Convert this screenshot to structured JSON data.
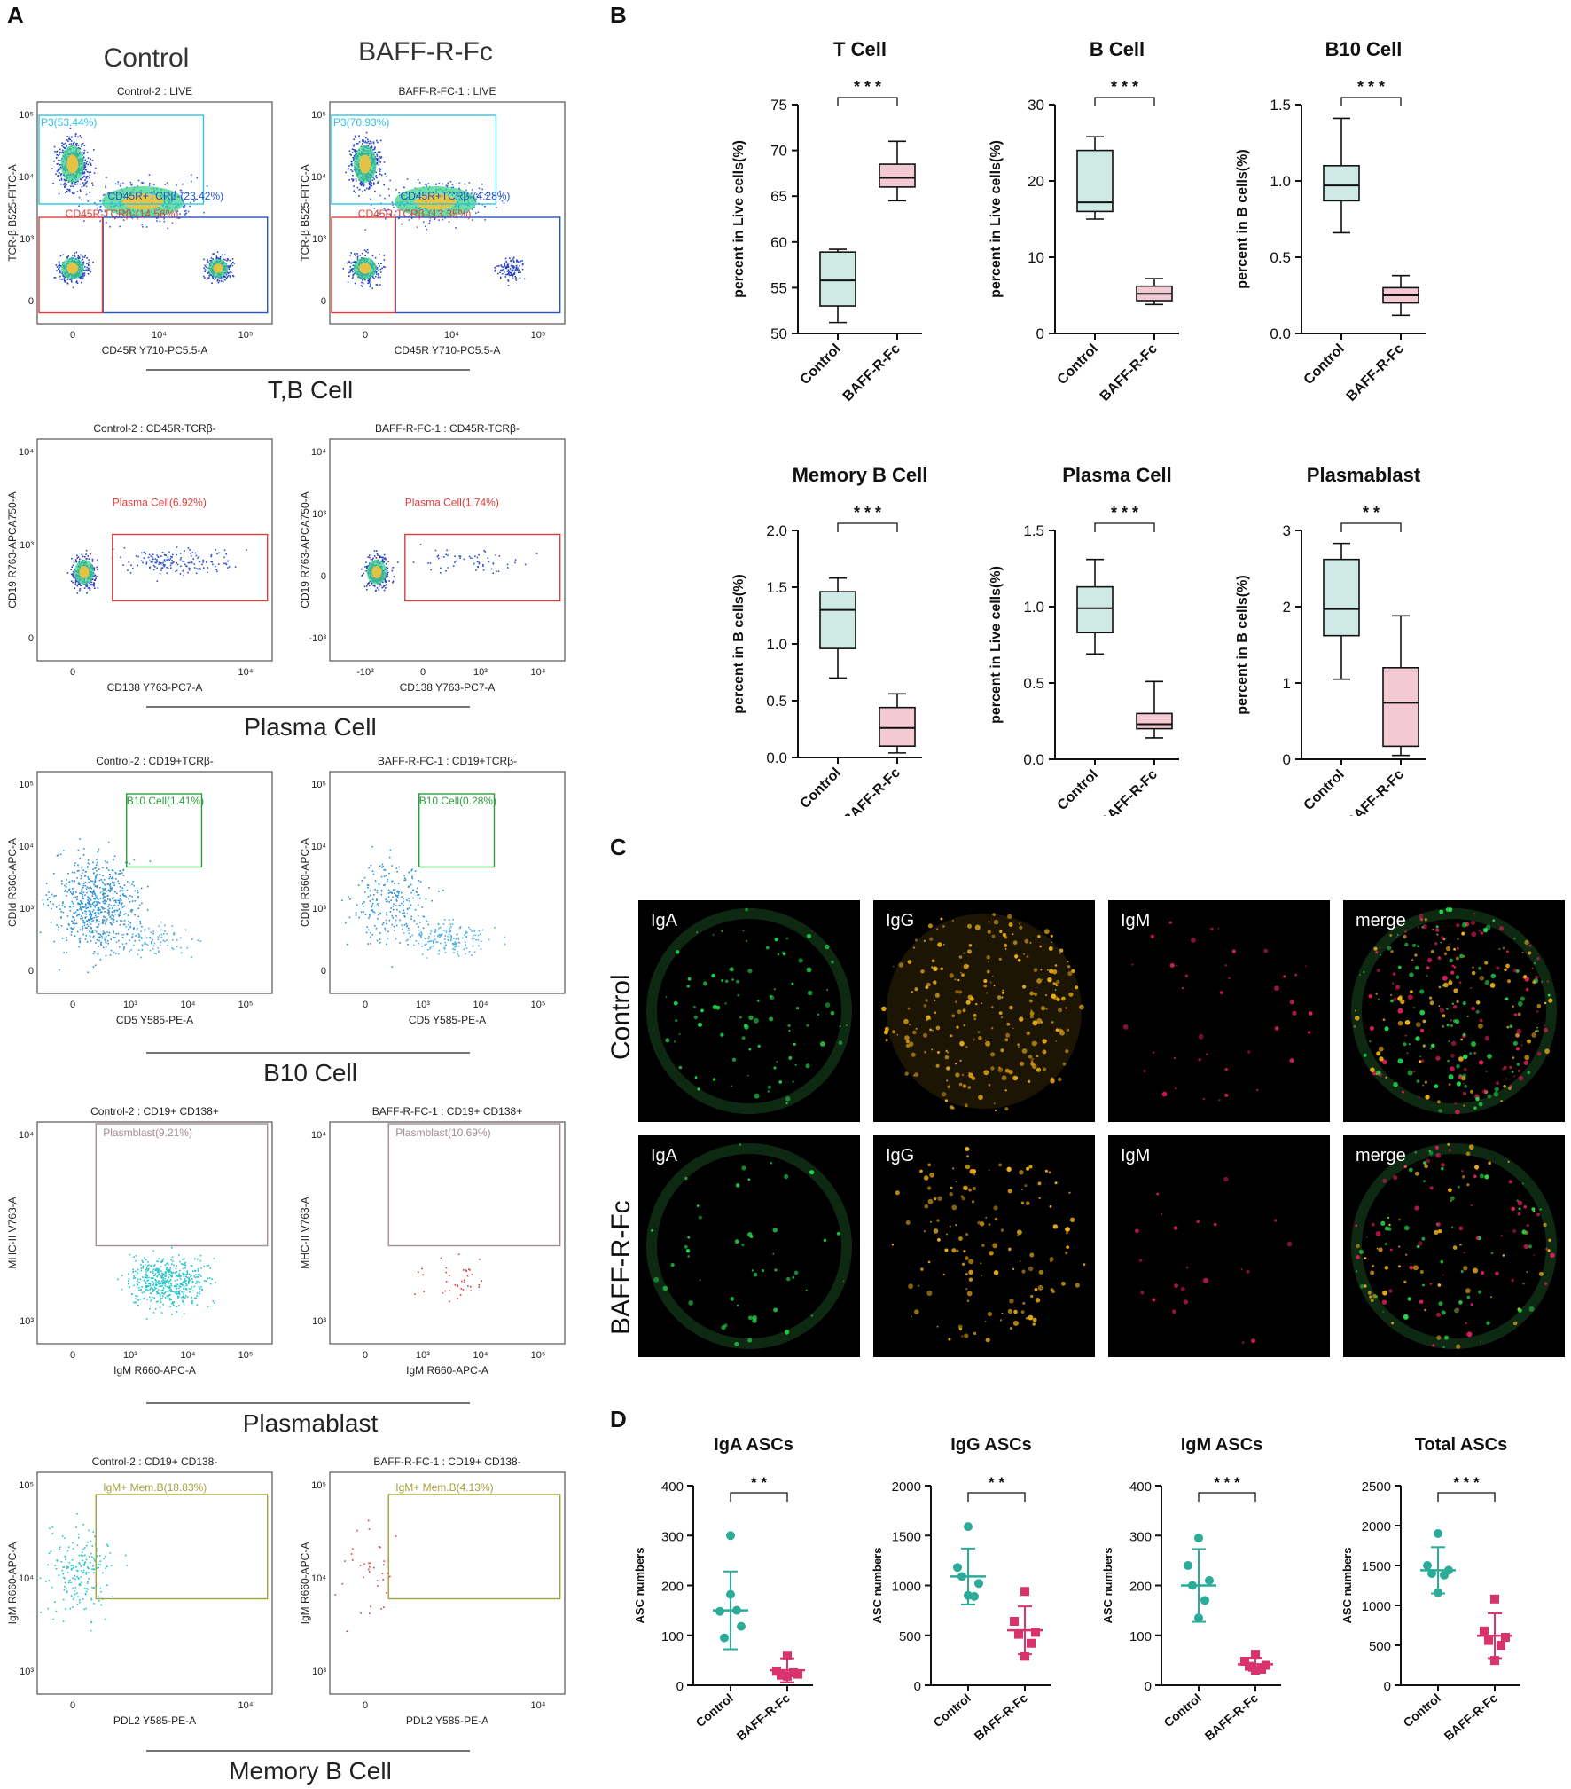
{
  "panel_letters": {
    "a": "A",
    "b": "B",
    "c": "C",
    "d": "D"
  },
  "colors": {
    "teal_box": "#cfe9e4",
    "pink_box": "#f3c9d3",
    "teal_dot": "#2bac98",
    "pink_dot": "#d9336e",
    "flow_gate_cyan": "#2ec4e6",
    "flow_gate_red": "#e23b3b",
    "flow_gate_blue": "#2454c9",
    "flow_gate_green": "#2c9e3b",
    "flow_gate_mauve": "#a38a96",
    "flow_gate_olive": "#a4a23a"
  },
  "flow": {
    "group_labels": [
      "Control",
      "BAFF-R-Fc"
    ],
    "section_labels": [
      "T,B Cell",
      "Plasma Cell",
      "B10 Cell",
      "Plasmablast",
      "Memory B Cell"
    ],
    "plots": [
      {
        "title": "Control-2 : LIVE",
        "xlabel": "CD45R Y710-PC5.5-A",
        "ylabel": "TCR-β B525-FITC-A",
        "gates": [
          "P3(53.44%)",
          "CD45R+TCRβ-(23.42%)",
          "CD45R-TCRβ-(14.56%)"
        ],
        "xticks": [
          "0",
          "10⁴",
          "10⁵"
        ],
        "yticks": [
          "10⁵",
          "10⁴",
          "10³",
          "0"
        ]
      },
      {
        "title": "BAFF-R-FC-1 : LIVE",
        "xlabel": "CD45R Y710-PC5.5-A",
        "ylabel": "TCR-β B525-FITC-A",
        "gates": [
          "P3(70.93%)",
          "CD45R+TCRβ-(4.28%)",
          "CD45R-TCRβ-(13.35%)"
        ],
        "xticks": [
          "0",
          "10⁴",
          "10⁵"
        ],
        "yticks": [
          "10⁵",
          "10⁴",
          "10³",
          "0"
        ]
      },
      {
        "title": "Control-2 : CD45R-TCRβ-",
        "xlabel": "CD138 Y763-PC7-A",
        "ylabel": "CD19 R763-APCA750-A",
        "gates": [
          "Plasma Cell(6.92%)"
        ],
        "xticks": [
          "0",
          "10⁴"
        ],
        "yticks": [
          "10⁴",
          "10³",
          "0"
        ]
      },
      {
        "title": "BAFF-R-FC-1 : CD45R-TCRβ-",
        "xlabel": "CD138 Y763-PC7-A",
        "ylabel": "CD19 R763-APCA750-A",
        "gates": [
          "Plasma Cell(1.74%)"
        ],
        "xticks": [
          "-10³",
          "0",
          "10³",
          "10⁴"
        ],
        "yticks": [
          "10⁴",
          "10³",
          "0",
          "-10³"
        ]
      },
      {
        "title": "Control-2 : CD19+TCRβ-",
        "xlabel": "CD5 Y585-PE-A",
        "ylabel": "CDId R660-APC-A",
        "gates": [
          "B10 Cell(1.41%)"
        ],
        "xticks": [
          "0",
          "10³",
          "10⁴",
          "10⁵"
        ],
        "yticks": [
          "10⁵",
          "10⁴",
          "10³",
          "0"
        ]
      },
      {
        "title": "BAFF-R-FC-1 : CD19+TCRβ-",
        "xlabel": "CD5 Y585-PE-A",
        "ylabel": "CDId R660-APC-A",
        "gates": [
          "B10 Cell(0.28%)"
        ],
        "xticks": [
          "0",
          "10³",
          "10⁴",
          "10⁵"
        ],
        "yticks": [
          "10⁵",
          "10⁴",
          "10³",
          "0"
        ]
      },
      {
        "title": "Control-2 : CD19+ CD138+",
        "xlabel": "IgM R660-APC-A",
        "ylabel": "MHC-II V763-A",
        "gates": [
          "Plasmblast(9.21%)"
        ],
        "xticks": [
          "0",
          "10³",
          "10⁴",
          "10⁵"
        ],
        "yticks": [
          "10⁴",
          "10³"
        ]
      },
      {
        "title": "BAFF-R-FC-1 : CD19+ CD138+",
        "xlabel": "IgM R660-APC-A",
        "ylabel": "MHC-II V763-A",
        "gates": [
          "Plasmblast(10.69%)"
        ],
        "xticks": [
          "0",
          "10³",
          "10⁴",
          "10⁵"
        ],
        "yticks": [
          "10⁴",
          "10³"
        ]
      },
      {
        "title": "Control-2 : CD19+ CD138-",
        "xlabel": "PDL2 Y585-PE-A",
        "ylabel": "IgM R660-APC-A",
        "gates": [
          "IgM+ Mem.B(18.83%)"
        ],
        "xticks": [
          "0",
          "10⁴"
        ],
        "yticks": [
          "10⁵",
          "10⁴",
          "10³"
        ]
      },
      {
        "title": "BAFF-R-FC-1 : CD19+ CD138-",
        "xlabel": "PDL2 Y585-PE-A",
        "ylabel": "IgM R660-APC-A",
        "gates": [
          "IgM+ Mem.B(4.13%)"
        ],
        "xticks": [
          "0",
          "10⁴"
        ],
        "yticks": [
          "10⁵",
          "10⁴",
          "10³"
        ]
      }
    ]
  },
  "chart_data": [
    {
      "type": "box",
      "title": "T Cell",
      "ylabel": "percent in Live cells(%)",
      "categories": [
        "Control",
        "BAFF-R-Fc"
      ],
      "ylim": [
        50,
        75
      ],
      "yticks": [
        "50",
        "55",
        "60",
        "65",
        "70",
        "75"
      ],
      "significance": "* * *",
      "boxes": [
        {
          "min": 51.2,
          "q1": 53.0,
          "median": 55.8,
          "q3": 58.9,
          "max": 59.2
        },
        {
          "min": 64.5,
          "q1": 66.0,
          "median": 67.0,
          "q3": 68.5,
          "max": 71.0
        }
      ]
    },
    {
      "type": "box",
      "title": "B Cell",
      "ylabel": "percent in Live cells(%)",
      "categories": [
        "Control",
        "BAFF-R-Fc"
      ],
      "ylim": [
        0,
        30
      ],
      "yticks": [
        "0",
        "10",
        "20",
        "30"
      ],
      "significance": "* * *",
      "boxes": [
        {
          "min": 15.0,
          "q1": 16.0,
          "median": 17.2,
          "q3": 24.0,
          "max": 25.8
        },
        {
          "min": 3.8,
          "q1": 4.3,
          "median": 5.2,
          "q3": 6.2,
          "max": 7.2
        }
      ]
    },
    {
      "type": "box",
      "title": "B10 Cell",
      "ylabel": "percent in B cells(%)",
      "categories": [
        "Control",
        "BAFF-R-Fc"
      ],
      "ylim": [
        0,
        1.5
      ],
      "yticks": [
        "0.0",
        "0.5",
        "1.0",
        "1.5"
      ],
      "significance": "* * *",
      "boxes": [
        {
          "min": 0.66,
          "q1": 0.87,
          "median": 0.97,
          "q3": 1.1,
          "max": 1.41
        },
        {
          "min": 0.12,
          "q1": 0.2,
          "median": 0.25,
          "q3": 0.3,
          "max": 0.38
        }
      ]
    },
    {
      "type": "box",
      "title": "Memory B Cell",
      "ylabel": "percent in B cells(%)",
      "categories": [
        "Control",
        "BAFF-R-Fc"
      ],
      "ylim": [
        0,
        2.0
      ],
      "yticks": [
        "0.0",
        "0.5",
        "1.0",
        "1.5",
        "2.0"
      ],
      "significance": "* * *",
      "boxes": [
        {
          "min": 0.7,
          "q1": 0.96,
          "median": 1.3,
          "q3": 1.46,
          "max": 1.58
        },
        {
          "min": 0.04,
          "q1": 0.1,
          "median": 0.26,
          "q3": 0.44,
          "max": 0.56
        }
      ]
    },
    {
      "type": "box",
      "title": "Plasma Cell",
      "ylabel": "percent in Live cells(%)",
      "categories": [
        "Control",
        "BAFF-R-Fc"
      ],
      "ylim": [
        0,
        1.5
      ],
      "yticks": [
        "0.0",
        "0.5",
        "1.0",
        "1.5"
      ],
      "significance": "* * *",
      "boxes": [
        {
          "min": 0.69,
          "q1": 0.83,
          "median": 0.99,
          "q3": 1.13,
          "max": 1.31
        },
        {
          "min": 0.14,
          "q1": 0.2,
          "median": 0.23,
          "q3": 0.3,
          "max": 0.51
        }
      ]
    },
    {
      "type": "box",
      "title": "Plasmablast",
      "ylabel": "percent in B cells(%)",
      "categories": [
        "Control",
        "BAFF-R-Fc"
      ],
      "ylim": [
        0,
        3
      ],
      "yticks": [
        "0",
        "1",
        "2",
        "3"
      ],
      "significance": "* *",
      "boxes": [
        {
          "min": 1.05,
          "q1": 1.62,
          "median": 1.97,
          "q3": 2.62,
          "max": 2.83
        },
        {
          "min": 0.05,
          "q1": 0.17,
          "median": 0.74,
          "q3": 1.2,
          "max": 1.88
        }
      ]
    },
    {
      "type": "scatter",
      "title": "IgA ASCs",
      "ylabel": "ASC numbers",
      "categories": [
        "Control",
        "BAFF-R-Fc"
      ],
      "ylim": [
        0,
        400
      ],
      "yticks": [
        "0",
        "100",
        "200",
        "300",
        "400"
      ],
      "significance": "* *",
      "groups": [
        {
          "mean": 150,
          "sd": 78,
          "points": [
            300,
            148,
            118,
            95,
            150,
            182
          ]
        },
        {
          "mean": 30,
          "sd": 24,
          "points": [
            60,
            28,
            22,
            20,
            25,
            18
          ]
        }
      ]
    },
    {
      "type": "scatter",
      "title": "IgG ASCs",
      "ylabel": "ASC numbers",
      "categories": [
        "Control",
        "BAFF-R-Fc"
      ],
      "ylim": [
        0,
        2000
      ],
      "yticks": [
        "0",
        "500",
        "1000",
        "1500",
        "2000"
      ],
      "significance": "* *",
      "groups": [
        {
          "mean": 1090,
          "sd": 280,
          "points": [
            1590,
            1180,
            1020,
            1090,
            890,
            900
          ]
        },
        {
          "mean": 550,
          "sd": 240,
          "points": [
            940,
            640,
            530,
            510,
            420,
            290
          ]
        }
      ]
    },
    {
      "type": "scatter",
      "title": "IgM ASCs",
      "ylabel": "ASC numbers",
      "categories": [
        "Control",
        "BAFF-R-Fc"
      ],
      "ylim": [
        0,
        400
      ],
      "yticks": [
        "0",
        "100",
        "200",
        "300",
        "400"
      ],
      "significance": "* * *",
      "groups": [
        {
          "mean": 200,
          "sd": 73,
          "points": [
            295,
            240,
            210,
            200,
            170,
            135
          ]
        },
        {
          "mean": 42,
          "sd": 13,
          "points": [
            62,
            48,
            40,
            38,
            32,
            30
          ]
        }
      ]
    },
    {
      "type": "scatter",
      "title": "Total ASCs",
      "ylabel": "ASC numbers",
      "categories": [
        "Control",
        "BAFF-R-Fc"
      ],
      "ylim": [
        0,
        2500
      ],
      "yticks": [
        "0",
        "500",
        "1000",
        "1500",
        "2000",
        "2500"
      ],
      "significance": "* * *",
      "groups": [
        {
          "mean": 1440,
          "sd": 290,
          "points": [
            1900,
            1500,
            1440,
            1400,
            1380,
            1160
          ]
        },
        {
          "mean": 620,
          "sd": 280,
          "points": [
            1080,
            680,
            600,
            560,
            500,
            310
          ]
        }
      ]
    }
  ],
  "microscopy": {
    "rows": [
      "Control",
      "BAFF-R-Fc"
    ],
    "channels": [
      "IgA",
      "IgG",
      "IgM",
      "merge"
    ]
  }
}
